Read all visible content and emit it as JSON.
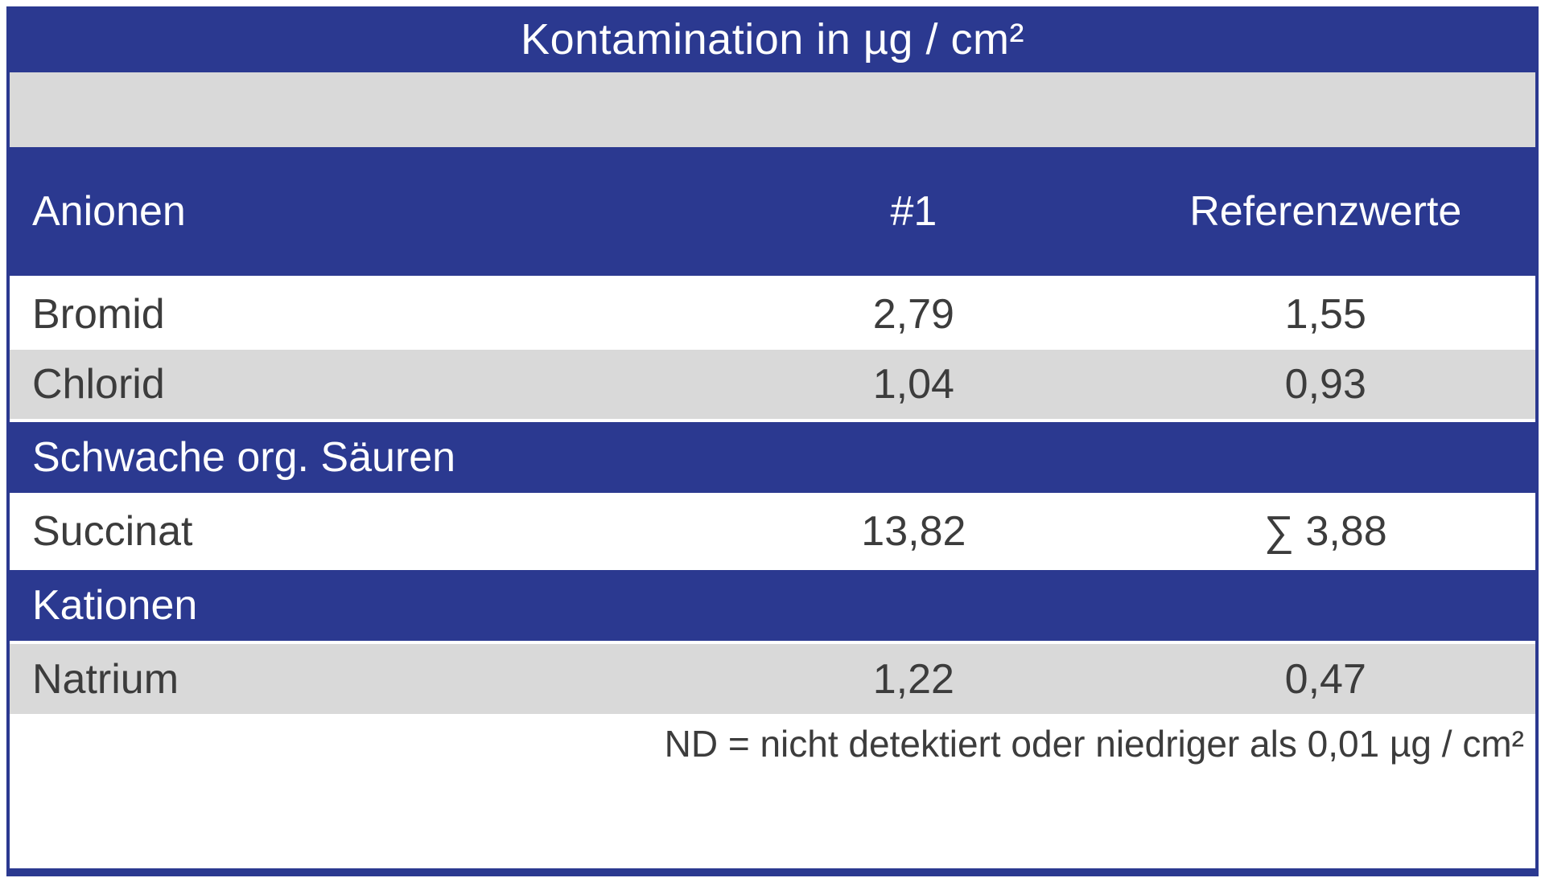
{
  "colors": {
    "blue": "#2b3990",
    "gray": "#d9d9d9",
    "text": "#3c3c3c"
  },
  "table": {
    "title": "Kontamination in µg / cm²",
    "header": {
      "category": "Anionen",
      "sample": "#1",
      "reference": "Referenzwerte"
    },
    "rows": [
      {
        "type": "data",
        "label": "Bromid",
        "sample": "2,79",
        "reference": "1,55"
      },
      {
        "type": "data",
        "label": "Chlorid",
        "sample": "1,04",
        "reference": "0,93"
      },
      {
        "type": "section",
        "label": "Schwache org. Säuren"
      },
      {
        "type": "data",
        "label": "Succinat",
        "sample": "13,82",
        "reference": "∑ 3,88"
      },
      {
        "type": "section",
        "label": "Kationen"
      },
      {
        "type": "data",
        "label": "Natrium",
        "sample": "1,22",
        "reference": "0,47"
      }
    ],
    "footnote": "ND = nicht detektiert oder niedriger als 0,01 µg / cm²"
  }
}
